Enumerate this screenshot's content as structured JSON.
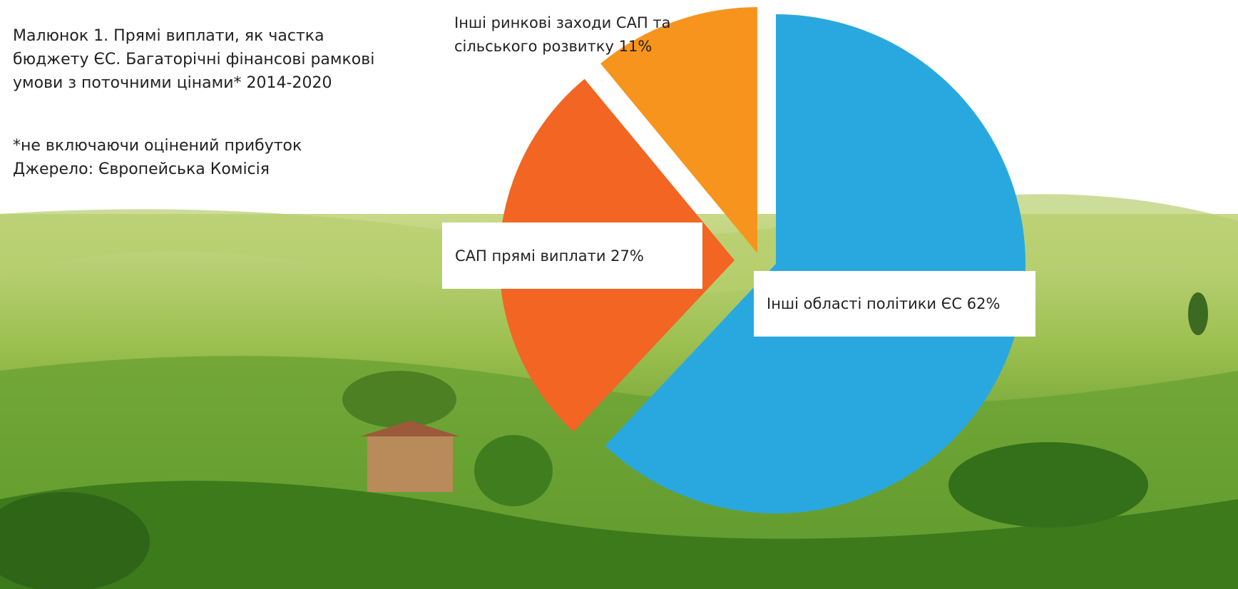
{
  "chart_data": {
    "type": "pie",
    "title": "Малюнок 1. Прямі виплати, як частка бюджету ЄС. Багаторічні фінансові рамкові умови з поточними цінами* 2014-2020",
    "notes": [
      "*не включаючи оцінений прибуток",
      "Джерело: Європейська Комісія"
    ],
    "categories": [
      "Інші області політики ЄС",
      "САП прямі виплати",
      "Інші ринкові заходи САП та сільського розвитку"
    ],
    "values": [
      62,
      27,
      11
    ],
    "value_labels": [
      "62%",
      "27%",
      "11%"
    ],
    "colors": [
      "#29a8e0",
      "#f26522",
      "#f7941d"
    ]
  }
}
